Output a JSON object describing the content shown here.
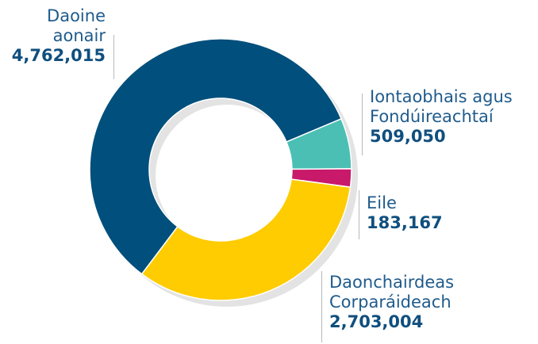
{
  "chart_data": {
    "type": "donut",
    "categories": [
      "Daoine aonair",
      "Iontaobhais agus Fondúireachtaí",
      "Eile",
      "Daonchairdeas Corparáideach"
    ],
    "values": [
      4762015,
      509050,
      183167,
      2703004
    ],
    "value_labels": [
      "4,762,015",
      "509,050",
      "183,167",
      "2,703,004"
    ],
    "colors": [
      "#004f7c",
      "#4bbfb4",
      "#c8196b",
      "#fecc00"
    ]
  }
}
